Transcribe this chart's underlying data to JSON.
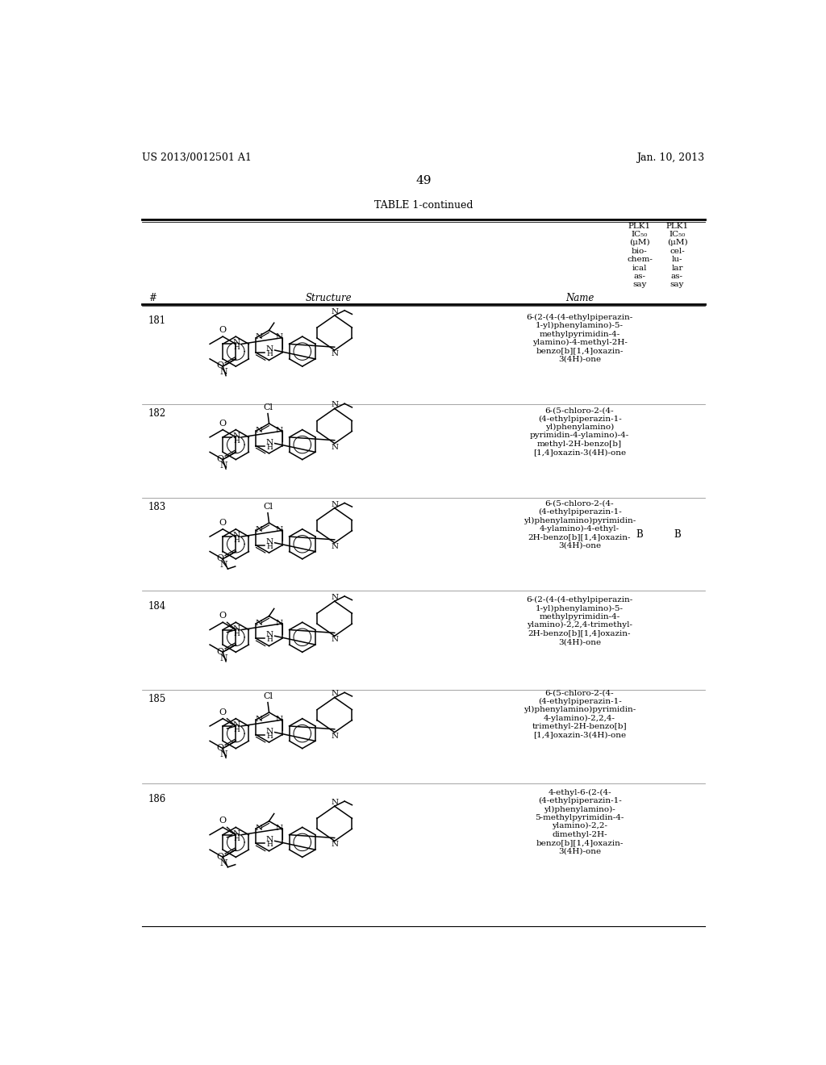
{
  "page_header_left": "US 2013/0012501 A1",
  "page_header_right": "Jan. 10, 2013",
  "page_number": "49",
  "table_title": "TABLE 1-continued",
  "col_headers_bio": [
    "PLK1",
    "IC₅₀",
    "(μM)",
    "bio-",
    "chem-",
    "ical",
    "as-",
    "say"
  ],
  "col_headers_cell": [
    "PLK1",
    "IC₅₀",
    "(μM)",
    "cel-",
    "lu-",
    "lar",
    "as-",
    "say"
  ],
  "col_num": "#",
  "col_structure": "Structure",
  "col_name": "Name",
  "rows": [
    {
      "num": "181",
      "name": "6-(2-(4-(4-ethylpiperazin-\n1-yl)phenylamino)-5-\nmethylpyrimidin-4-\nylamino)-4-methyl-2H-\nbenzo[b][1,4]oxazin-\n3(4H)-one",
      "plk1_bio": "",
      "plk1_cell": "",
      "has_chloro": false,
      "gem_dimethyl": false,
      "n_ethyl_oxazine": false,
      "has_methyl_pyr": true,
      "piperazine_square": true
    },
    {
      "num": "182",
      "name": "6-(5-chloro-2-(4-\n(4-ethylpiperazin-1-\nyl)phenylamino)\npyrimidin-4-ylamino)-4-\nmethyl-2H-benzo[b]\n[1,4]oxazin-3(4H)-one",
      "plk1_bio": "",
      "plk1_cell": "",
      "has_chloro": true,
      "gem_dimethyl": false,
      "n_ethyl_oxazine": false,
      "has_methyl_pyr": false,
      "piperazine_square": true
    },
    {
      "num": "183",
      "name": "6-(5-chloro-2-(4-\n(4-ethylpiperazin-1-\nyl)phenylamino)pyrimidin-\n4-ylamino)-4-ethyl-\n2H-benzo[b][1,4]oxazin-\n3(4H)-one",
      "plk1_bio": "B",
      "plk1_cell": "B",
      "has_chloro": true,
      "gem_dimethyl": false,
      "n_ethyl_oxazine": true,
      "has_methyl_pyr": false,
      "piperazine_square": true
    },
    {
      "num": "184",
      "name": "6-(2-(4-(4-ethylpiperazin-\n1-yl)phenylamino)-5-\nmethylpyrimidin-4-\nylamino)-2,2,4-trimethyl-\n2H-benzo[b][1,4]oxazin-\n3(4H)-one",
      "plk1_bio": "",
      "plk1_cell": "",
      "has_chloro": false,
      "gem_dimethyl": true,
      "n_ethyl_oxazine": false,
      "has_methyl_pyr": true,
      "piperazine_square": true
    },
    {
      "num": "185",
      "name": "6-(5-chloro-2-(4-\n(4-ethylpiperazin-1-\nyl)phenylamino)pyrimidin-\n4-ylamino)-2,2,4-\ntrimethyl-2H-benzo[b]\n[1,4]oxazin-3(4H)-one",
      "plk1_bio": "",
      "plk1_cell": "",
      "has_chloro": true,
      "gem_dimethyl": true,
      "n_ethyl_oxazine": false,
      "has_methyl_pyr": false,
      "piperazine_square": true
    },
    {
      "num": "186",
      "name": "4-ethyl-6-(2-(4-\n(4-ethylpiperazin-1-\nyl)phenylamino)-\n5-methylpyrimidin-4-\nylamino)-2,2-\ndimethyl-2H-\nbenzo[b][1,4]oxazin-\n3(4H)-one",
      "plk1_bio": "",
      "plk1_cell": "",
      "has_chloro": false,
      "gem_dimethyl": true,
      "n_ethyl_oxazine": true,
      "has_methyl_pyr": true,
      "piperazine_square": true
    }
  ],
  "background_color": "#ffffff",
  "text_color": "#000000"
}
